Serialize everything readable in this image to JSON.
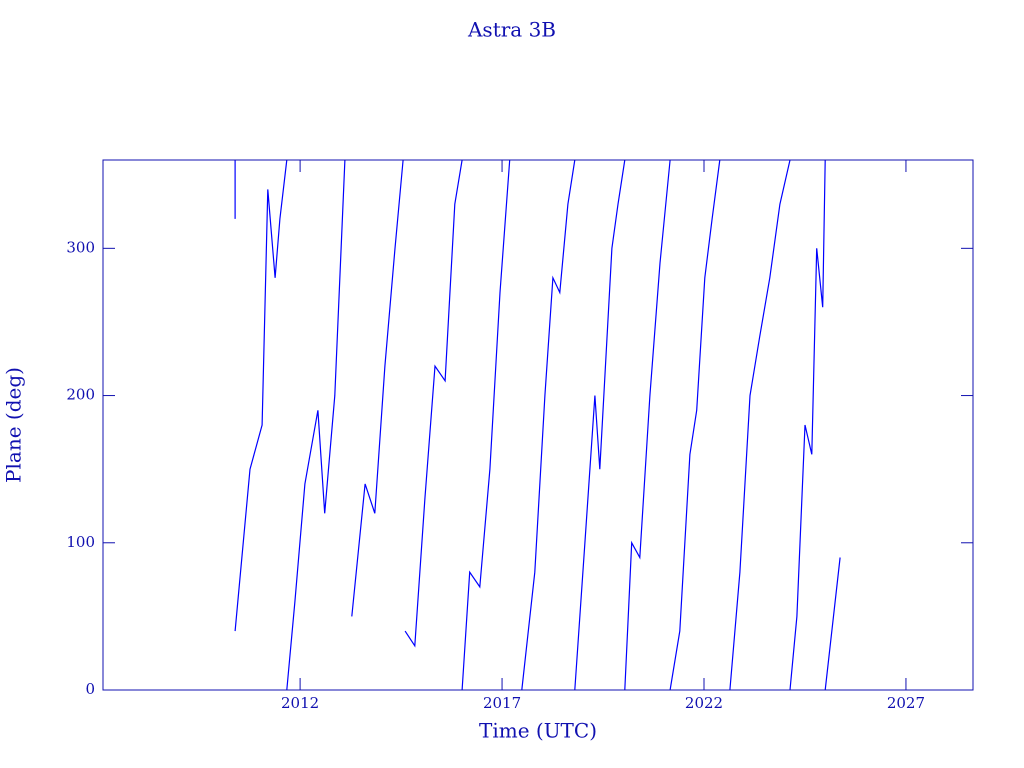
{
  "chart_data": {
    "type": "line",
    "title": "Astra 3B",
    "x_label": "Time (UTC)",
    "y_label": "Plane (deg)",
    "xlim": [
      2007.12,
      2028.66
    ],
    "ylim": [
      0,
      360
    ],
    "xticks": [
      2012,
      2017,
      2022,
      2027
    ],
    "yticks": [
      0,
      100,
      200,
      300
    ],
    "axis_color": "#1010b0",
    "series": [
      {
        "color": "#0000ff",
        "x": [
          2010.39,
          2010.39,
          2010.39,
          2010.39,
          2010.76,
          2011.06,
          2011.2,
          2011.38,
          2011.5,
          2011.67,
          2011.67,
          2011.67,
          2011.87,
          2012.12,
          2012.44,
          2012.61,
          2012.86,
          2013.11,
          2013.11,
          2013.28,
          2013.61,
          2013.85,
          2014.1,
          2014.35,
          2014.55,
          2014.55,
          2014.6,
          2014.84,
          2015.09,
          2015.34,
          2015.59,
          2015.83,
          2016.01,
          2016.01,
          2016.01,
          2016.2,
          2016.45,
          2016.7,
          2016.95,
          2017.19,
          2017.19,
          2017.49,
          2017.81,
          2018.06,
          2018.26,
          2018.43,
          2018.63,
          2018.8,
          2018.8,
          2018.8,
          2019.05,
          2019.3,
          2019.42,
          2019.72,
          2019.87,
          2020.04,
          2020.04,
          2020.04,
          2020.21,
          2020.41,
          2020.66,
          2020.91,
          2021.16,
          2021.16,
          2021.16,
          2021.4,
          2021.65,
          2021.82,
          2022.02,
          2022.2,
          2022.39,
          2022.39,
          2022.64,
          2022.89,
          2023.14,
          2023.38,
          2023.63,
          2023.88,
          2024.13,
          2024.13,
          2024.13,
          2024.3,
          2024.5,
          2024.67,
          2024.79,
          2024.94,
          2025.0,
          2025.0,
          2025.0,
          2025.37
        ],
        "values": [
          320,
          360,
          null,
          40,
          150,
          180,
          340,
          280,
          320,
          360,
          null,
          0,
          60,
          140,
          190,
          120,
          200,
          360,
          null,
          50,
          140,
          120,
          220,
          300,
          360,
          null,
          40,
          30,
          130,
          220,
          210,
          330,
          360,
          null,
          0,
          80,
          70,
          150,
          270,
          360,
          null,
          0,
          80,
          200,
          280,
          270,
          330,
          360,
          null,
          0,
          100,
          200,
          150,
          300,
          330,
          360,
          null,
          0,
          100,
          90,
          200,
          290,
          360,
          null,
          0,
          40,
          160,
          190,
          280,
          320,
          360,
          null,
          0,
          80,
          200,
          240,
          280,
          330,
          360,
          null,
          0,
          50,
          180,
          160,
          300,
          260,
          360,
          null,
          0,
          90
        ]
      }
    ]
  }
}
